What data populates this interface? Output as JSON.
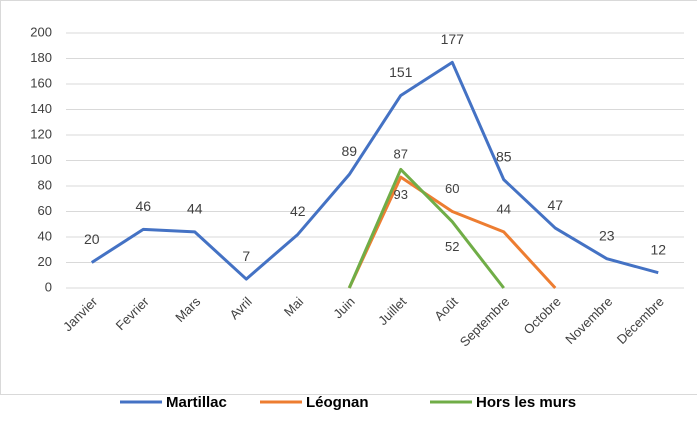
{
  "chart_data": {
    "type": "line",
    "categories": [
      "Janvier",
      "Fevrier",
      "Mars",
      "Avril",
      "Mai",
      "Juin",
      "Juillet",
      "Août",
      "Septembre",
      "Octobre",
      "Novembre",
      "Décembre"
    ],
    "series": [
      {
        "name": "Martillac",
        "color": "#4472c4",
        "values": [
          20,
          46,
          44,
          7,
          42,
          89,
          151,
          177,
          85,
          47,
          23,
          12
        ]
      },
      {
        "name": "Léognan",
        "color": "#ed7d31",
        "values": [
          null,
          null,
          null,
          null,
          null,
          0,
          87,
          60,
          44,
          0,
          null,
          null
        ],
        "value_labels": [
          null,
          null,
          null,
          null,
          null,
          null,
          "87",
          "60",
          "44",
          null,
          null,
          null
        ]
      },
      {
        "name": "Hors les murs",
        "color": "#70ad47",
        "values": [
          null,
          null,
          null,
          null,
          null,
          0,
          93,
          52,
          0,
          null,
          null,
          null
        ],
        "value_labels": [
          null,
          null,
          null,
          null,
          null,
          null,
          "93",
          "52",
          null,
          null,
          null,
          null
        ]
      }
    ],
    "ylim": [
      0,
      200
    ],
    "yticks": [
      0,
      20,
      40,
      60,
      80,
      100,
      120,
      140,
      160,
      180,
      200
    ],
    "grid": true,
    "legend": "bottom"
  }
}
